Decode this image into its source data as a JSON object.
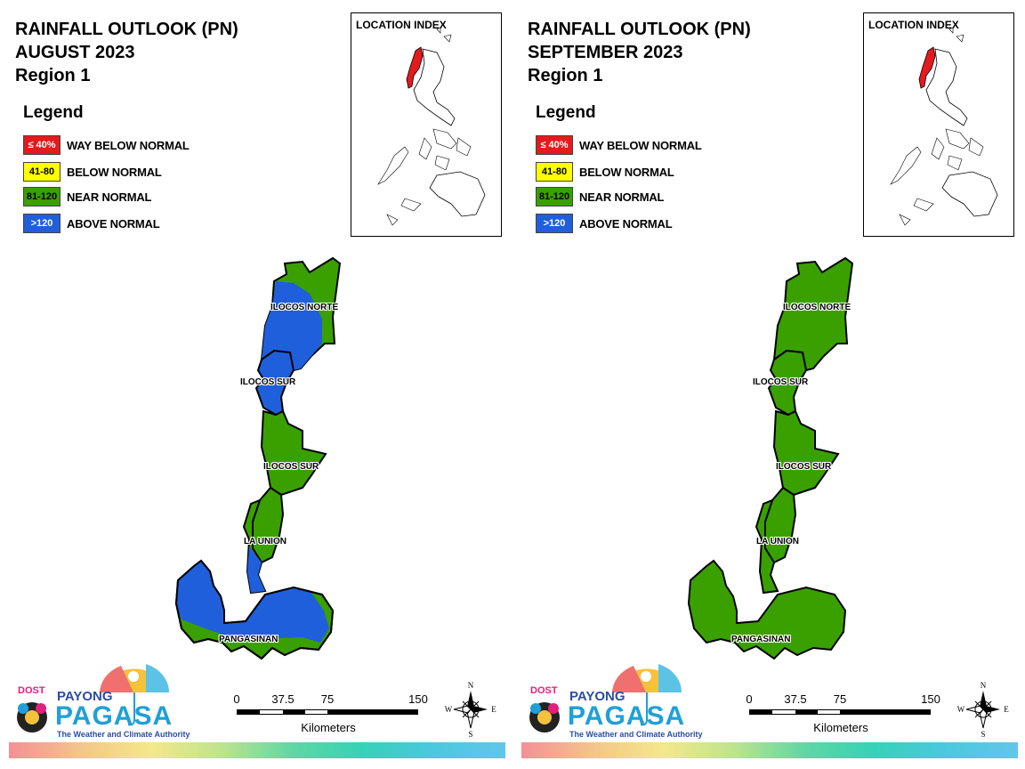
{
  "panels": [
    {
      "title_line1": "RAINFALL OUTLOOK (PN)",
      "title_line2": "AUGUST 2023",
      "title_line3": "Region 1",
      "legend_title": "Legend",
      "legend": [
        {
          "code": "≤ 40%",
          "label": "WAY BELOW NORMAL",
          "color": "#e41a1c"
        },
        {
          "code": "41-80",
          "label": "BELOW NORMAL",
          "color": "#ffff00"
        },
        {
          "code": "81-120",
          "label": "NEAR NORMAL",
          "color": "#3aa000"
        },
        {
          "code": ">120",
          "label": "ABOVE NORMAL",
          "color": "#1f5fdc"
        }
      ],
      "location_index": "LOCATION INDEX",
      "provinces": {
        "ilocos_norte": "ILOCOS NORTE",
        "ilocos_sur_north": "ILOCOS SUR",
        "ilocos_sur_south": "ILOCOS SUR",
        "la_union": "LA UNION",
        "pangasinan": "PANGASINAN"
      },
      "scale": {
        "t0": "0",
        "t1": "37.5",
        "t2": "75",
        "t3": "150",
        "units": "Kilometers"
      },
      "compass": {
        "n": "N",
        "s": "S",
        "e": "E",
        "w": "W"
      },
      "logo": {
        "dost": "DOST",
        "payong": "PAYONG",
        "pagasa": "PAGASA",
        "tagline": "The Weather and Climate Authority"
      }
    },
    {
      "title_line1": "RAINFALL OUTLOOK (PN)",
      "title_line2": "SEPTEMBER 2023",
      "title_line3": "Region 1",
      "legend_title": "Legend",
      "legend": [
        {
          "code": "≤ 40%",
          "label": "WAY BELOW NORMAL",
          "color": "#e41a1c"
        },
        {
          "code": "41-80",
          "label": "BELOW NORMAL",
          "color": "#ffff00"
        },
        {
          "code": "81-120",
          "label": "NEAR NORMAL",
          "color": "#3aa000"
        },
        {
          "code": ">120",
          "label": "ABOVE NORMAL",
          "color": "#1f5fdc"
        }
      ],
      "location_index": "LOCATION INDEX",
      "provinces": {
        "ilocos_norte": "ILOCOS NORTE",
        "ilocos_sur_north": "ILOCOS SUR",
        "ilocos_sur_south": "ILOCOS SUR",
        "la_union": "LA UNION",
        "pangasinan": "PANGASINAN"
      },
      "scale": {
        "t0": "0",
        "t1": "37.5",
        "t2": "75",
        "t3": "150",
        "units": "Kilometers"
      },
      "compass": {
        "n": "N",
        "s": "S",
        "e": "E",
        "w": "W"
      },
      "logo": {
        "dost": "DOST",
        "payong": "PAYONG",
        "pagasa": "PAGASA",
        "tagline": "The Weather and Climate Authority"
      }
    }
  ]
}
